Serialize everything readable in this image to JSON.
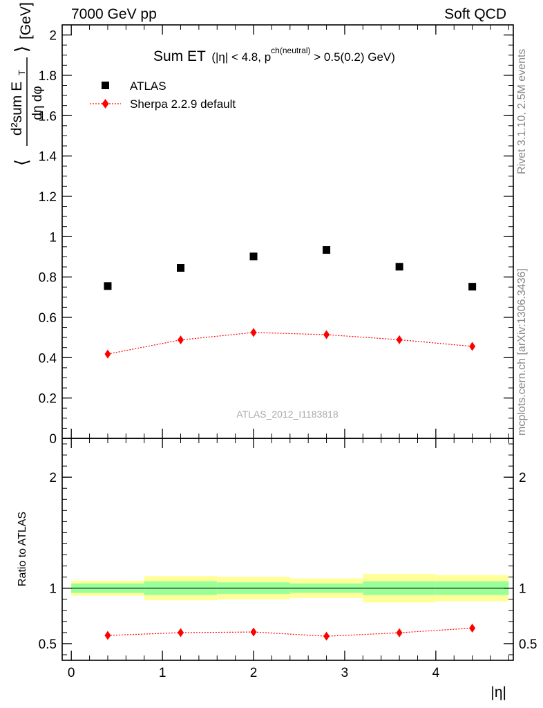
{
  "header": {
    "left": "7000 GeV pp",
    "right": "Soft QCD"
  },
  "side_texts": {
    "rivet": "Rivet 3.1.10,  2.5M events",
    "mcplots": "mcplots.cern.ch [arXiv:1306.3436]"
  },
  "watermark": "ATLAS_2012_I1183818",
  "chart_data": [
    {
      "type": "scatter",
      "title": "Sum ET",
      "title_cut": "(|η| < 4.8, p",
      "title_sup": "ch(neutral)",
      "title_tail": " > 0.5(0.2) GeV)",
      "ylabel": "⟨ d²sum E_T / dη dφ ⟩ [GeV]",
      "ylabel_parts": {
        "num": "d²sum E",
        "sub": "T",
        "den": "dη dφ",
        "unit": "[GeV]"
      },
      "xlim": [
        -0.1,
        4.85
      ],
      "ylim": [
        0,
        2.05
      ],
      "yticks": [
        0,
        0.2,
        0.4,
        0.6,
        0.8,
        1,
        1.2,
        1.4,
        1.6,
        1.8,
        2
      ],
      "ytick_labels": [
        "0",
        "0.2",
        "0.4",
        "0.6",
        "0.8",
        "1",
        "1.2",
        "1.4",
        "1.6",
        "1.8",
        "2"
      ],
      "legend_position": "top-left",
      "x": [
        0.4,
        1.2,
        2.0,
        2.8,
        3.6,
        4.4
      ],
      "series": [
        {
          "name": "ATLAS",
          "marker": "square",
          "color": "#000000",
          "values": [
            0.755,
            0.845,
            0.902,
            0.934,
            0.851,
            0.752
          ]
        },
        {
          "name": "Sherpa 2.2.9 default",
          "marker": "diamond",
          "color": "#ff0000",
          "line": "dotted",
          "values": [
            0.418,
            0.488,
            0.525,
            0.514,
            0.489,
            0.456
          ]
        }
      ]
    },
    {
      "type": "scatter",
      "ylabel": "Ratio to ATLAS",
      "xlabel": "|η|",
      "xlim": [
        -0.1,
        4.85
      ],
      "ylim": [
        0.35,
        2.35
      ],
      "xticks": [
        0,
        1,
        2,
        3,
        4
      ],
      "xtick_labels": [
        "0",
        "1",
        "2",
        "3",
        "4"
      ],
      "yticks": [
        0.5,
        1,
        2
      ],
      "ytick_labels": [
        "0.5",
        "1",
        "2"
      ],
      "reference_line": 1,
      "bins": [
        [
          0,
          0.8
        ],
        [
          0.8,
          1.6
        ],
        [
          1.6,
          2.4
        ],
        [
          2.4,
          3.2
        ],
        [
          3.2,
          4.0
        ],
        [
          4.0,
          4.8
        ]
      ],
      "band_colors": {
        "inner": "#99ff99",
        "outer": "#ffff99"
      },
      "band_inner": [
        [
          0.957,
          1.042
        ],
        [
          0.938,
          1.062
        ],
        [
          0.948,
          1.052
        ],
        [
          0.958,
          1.042
        ],
        [
          0.938,
          1.062
        ],
        [
          0.938,
          1.062
        ]
      ],
      "band_outer": [
        [
          0.932,
          1.068
        ],
        [
          0.891,
          1.109
        ],
        [
          0.898,
          1.102
        ],
        [
          0.912,
          1.088
        ],
        [
          0.871,
          1.129
        ],
        [
          0.882,
          1.118
        ]
      ],
      "x": [
        0.4,
        1.2,
        2.0,
        2.8,
        3.6,
        4.4
      ],
      "series": [
        {
          "name": "Sherpa 2.2.9 default",
          "marker": "diamond",
          "color": "#ff0000",
          "line": "dotted",
          "values": [
            0.574,
            0.599,
            0.605,
            0.567,
            0.598,
            0.64
          ]
        }
      ]
    }
  ]
}
